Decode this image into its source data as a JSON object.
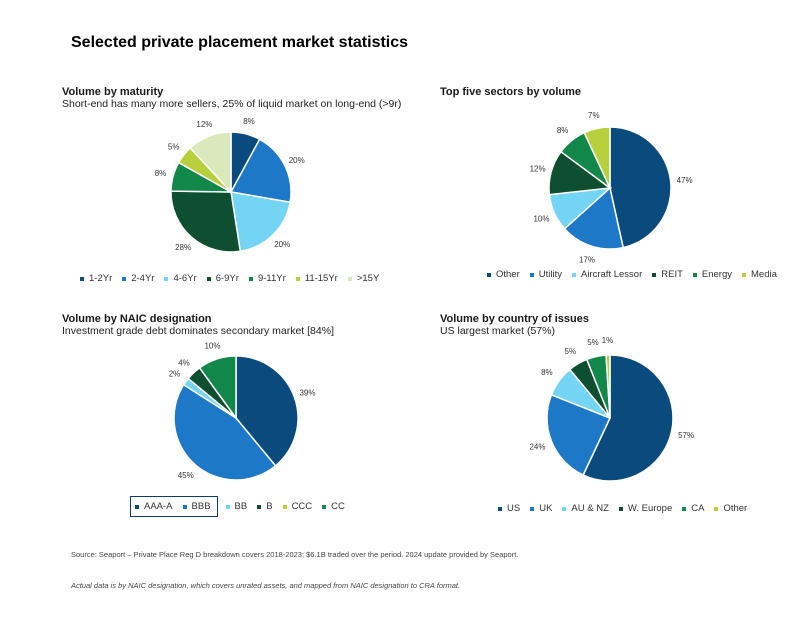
{
  "title": "Selected private placement market statistics",
  "chart_data": [
    {
      "type": "pie",
      "title": "Volume by maturity",
      "subtitle": "Short-end has many more sellers, 25% of liquid market on long-end (>9r)",
      "labels": [
        "1-2Yr",
        "2-4Yr",
        "4-6Yr",
        "6-9Yr",
        "9-11Yr",
        "11-15Yr",
        ">15Y"
      ],
      "values": [
        8,
        20,
        20,
        28,
        8,
        5,
        12
      ],
      "value_labels": [
        "8%",
        "20%",
        "20%",
        "28%",
        "8%",
        "5%",
        "12%"
      ],
      "colors": [
        "#0b4a7d",
        "#1e78c8",
        "#74d4f4",
        "#0d4f2e",
        "#12874a",
        "#b7cf3a",
        "#dbe8bc"
      ],
      "legend_position": "bottom"
    },
    {
      "type": "pie",
      "title": "Top five sectors by volume",
      "subtitle": "",
      "labels": [
        "Other",
        "Utility",
        "Aircraft Lessor",
        "REIT",
        "Energy",
        "Media"
      ],
      "values": [
        47,
        17,
        10,
        12,
        8,
        7
      ],
      "value_labels": [
        "47%",
        "17%",
        "10%",
        "12%",
        "8%",
        "7%"
      ],
      "colors": [
        "#0b4a7d",
        "#1e78c8",
        "#74d4f4",
        "#0d4f2e",
        "#12874a",
        "#b7cf3a"
      ],
      "legend_position": "bottom"
    },
    {
      "type": "pie",
      "title": "Volume by NAIC designation",
      "subtitle": "Investment grade debt dominates secondary market [84%]",
      "labels": [
        "AAA-A",
        "BBB",
        "BB",
        "B",
        "CCC",
        "CC"
      ],
      "values": [
        39,
        45,
        2,
        4,
        0,
        10
      ],
      "value_labels": [
        "39%",
        "45%",
        "2%",
        "4%",
        "",
        "10%"
      ],
      "colors": [
        "#0b4a7d",
        "#1e78c8",
        "#74d4f4",
        "#0d4f2e",
        "#b7cf3a",
        "#12874a"
      ],
      "legend_position": "bottom",
      "highlighted_legend": [
        "AAA-A",
        "BBB"
      ]
    },
    {
      "type": "pie",
      "title": "Volume by country of issues",
      "subtitle": "US largest market (57%)",
      "labels": [
        "US",
        "UK",
        "AU & NZ",
        "W. Europe",
        "CA",
        "Other"
      ],
      "values": [
        57,
        24,
        8,
        5,
        5,
        1
      ],
      "value_labels": [
        "57%",
        "24%",
        "8%",
        "5%",
        "5%",
        "1%"
      ],
      "colors": [
        "#0b4a7d",
        "#1e78c8",
        "#74d4f4",
        "#0d4f2e",
        "#12874a",
        "#b7cf3a"
      ],
      "legend_position": "bottom"
    }
  ],
  "footnotes": {
    "source": "Source: Seaport – Private Place Reg D breakdown covers 2018-2023; $6.1B traded over the period. 2024 update provided by Seaport.",
    "note": "Actual data is by NAIC designation, which covers unrated assets, and mapped from NAIC designation to CRA format."
  }
}
